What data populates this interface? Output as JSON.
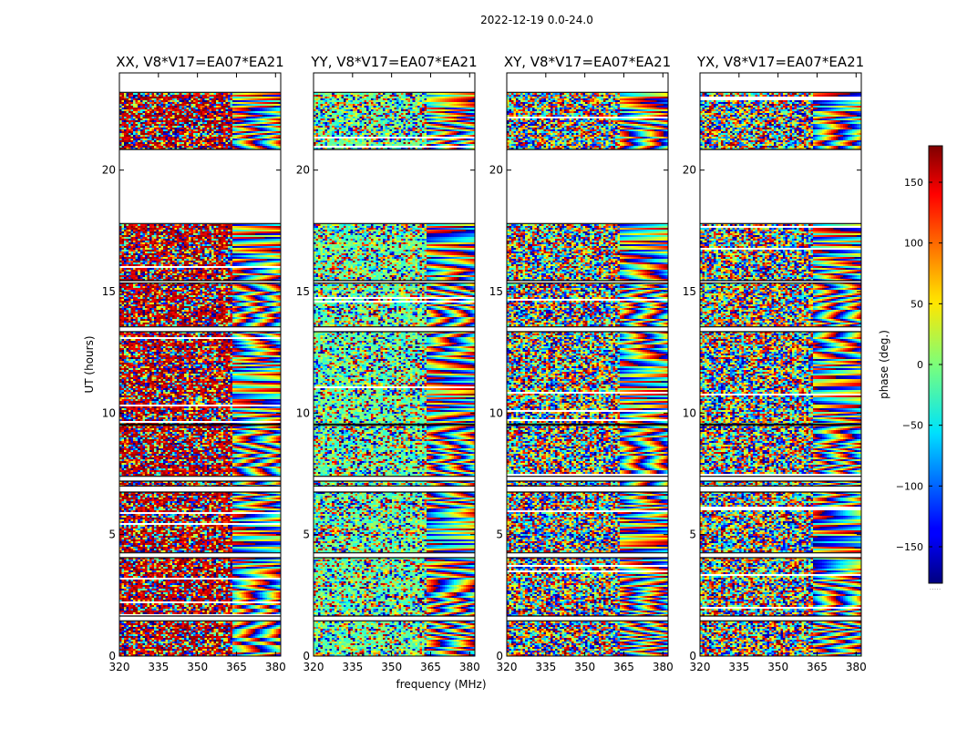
{
  "figure": {
    "suptitle": "2022-12-19 0.0-24.0",
    "xlabel": "frequency (MHz)",
    "ylabel": "UT (hours)",
    "colorbar_label": "phase (deg.)",
    "colorbar_dots": "....."
  },
  "chart_data": {
    "type": "heatmap",
    "colormap": "jet",
    "colors": {
      "missing": "#ffffff",
      "gap_line": "#000000",
      "frame": "#000000"
    },
    "xlim": [
      320,
      382
    ],
    "ylim": [
      0,
      24
    ],
    "x_ticks": [
      320,
      335,
      350,
      365,
      380
    ],
    "x_tick_labels": [
      "320",
      "335",
      "350",
      "365",
      "380"
    ],
    "y_ticks": [
      0,
      5,
      10,
      15,
      20
    ],
    "y_tick_labels": [
      "0",
      "5",
      "10",
      "15",
      "20"
    ],
    "colorbar": {
      "range": [
        -180,
        180
      ],
      "ticks": [
        -150,
        -100,
        -50,
        0,
        50,
        100,
        150
      ],
      "tick_labels": [
        "−150",
        "−100",
        "−50",
        "0",
        "50",
        "100",
        "150"
      ]
    },
    "data_blocks_ut_hours": [
      [
        0.0,
        1.45
      ],
      [
        1.65,
        4.05
      ],
      [
        4.25,
        6.75
      ],
      [
        7.0,
        7.2
      ],
      [
        7.4,
        9.5
      ],
      [
        9.55,
        13.35
      ],
      [
        13.55,
        15.35
      ],
      [
        15.45,
        17.8
      ],
      [
        20.85,
        23.2
      ]
    ],
    "band_edge_mhz": 363,
    "panels": [
      {
        "title": "XX, V8*V17=EA07*EA21",
        "polarization": "XX",
        "mean_phase_deg": 160,
        "coherence": 0.45
      },
      {
        "title": "YY, V8*V17=EA07*EA21",
        "polarization": "YY",
        "mean_phase_deg": -10,
        "coherence": 0.42
      },
      {
        "title": "XY, V8*V17=EA07*EA21",
        "polarization": "XY",
        "mean_phase_deg": 0,
        "coherence": 0.0
      },
      {
        "title": "YX, V8*V17=EA07*EA21",
        "polarization": "YX",
        "mean_phase_deg": 0,
        "coherence": 0.0
      }
    ]
  }
}
